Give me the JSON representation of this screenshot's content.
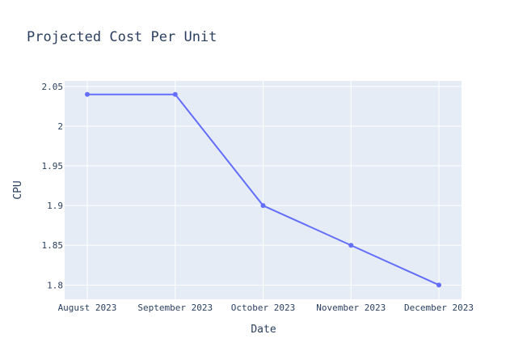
{
  "chart_data": {
    "type": "line",
    "title": "Projected Cost Per Unit",
    "xlabel": "Date",
    "ylabel": "CPU",
    "categories": [
      "August 2023",
      "September 2023",
      "October 2023",
      "November 2023",
      "December 2023"
    ],
    "series": [
      {
        "values": [
          2.04,
          2.04,
          1.9,
          1.85,
          1.8
        ],
        "color": "#636efa"
      }
    ],
    "ylim": [
      1.782,
      2.057
    ],
    "yticks": [
      "1.8",
      "1.85",
      "1.9",
      "1.95",
      "2",
      "2.05"
    ],
    "grid": true,
    "plot_bg_color": "#e5ecf6",
    "grid_color": "#ffffff"
  }
}
